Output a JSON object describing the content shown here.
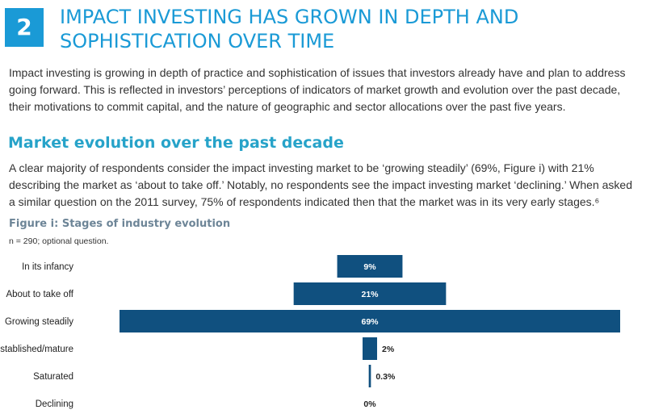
{
  "section": {
    "number": "2",
    "title": "IMPACT INVESTING HAS GROWN IN DEPTH AND SOPHISTICATION OVER TIME",
    "intro": "Impact investing is growing in depth of practice and sophistication of issues that investors already have and plan to address going forward. This is reflected in investors’ perceptions of indicators of market growth and evolution over the past decade, their motivations to commit capital, and the nature of geographic and sector allocations over the past five years."
  },
  "subsection": {
    "heading": "Market evolution over the past decade",
    "paragraph": "A clear majority of respondents consider the impact investing market to be ‘growing steadily’ (69%, Figure i) with 21% describing the market as ‘about to take off.’ Notably, no respondents see the impact investing market ‘declining.’ When asked a similar question on the 2011 survey, 75% of respondents indicated then that the market was in its very early stages.⁶"
  },
  "figure": {
    "title": "Figure i: Stages of industry evolution",
    "note": "n = 290; optional question."
  },
  "colors": {
    "accent": "#1a9ad6",
    "bar": "#10507f",
    "subhead": "#27a3c9"
  },
  "chart_data": {
    "type": "bar",
    "orientation": "horizontal-centered",
    "categories": [
      "In its infancy",
      "About to take off",
      "Growing steadily",
      "Established/mature",
      "Saturated",
      "Declining"
    ],
    "values": [
      9,
      21,
      69,
      2,
      0.3,
      0
    ],
    "value_labels": [
      "9%",
      "21%",
      "69%",
      "2%",
      "0.3%",
      "0%"
    ],
    "xlim": [
      0,
      69
    ]
  }
}
